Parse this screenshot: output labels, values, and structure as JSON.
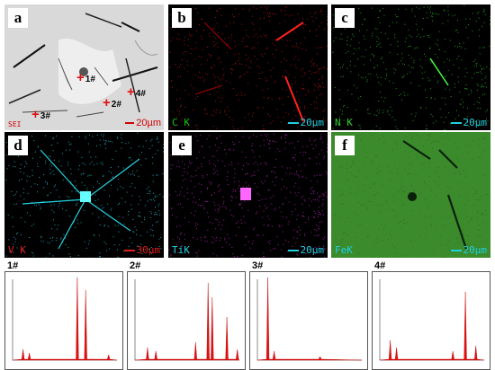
{
  "panels": [
    {
      "letter": "a",
      "channel": "SEI",
      "scale": "20µm",
      "type": "sem"
    },
    {
      "letter": "b",
      "channel": "C K",
      "scale": "20µm",
      "color": "#d01010"
    },
    {
      "letter": "c",
      "channel": "N K",
      "scale": "20µm",
      "color": "#2ecc2e"
    },
    {
      "letter": "d",
      "channel": "V K",
      "scale": "30µm",
      "color": "#22d4e0"
    },
    {
      "letter": "e",
      "channel": "TiK",
      "scale": "20µm",
      "color": "#cc33cc"
    },
    {
      "letter": "f",
      "channel": "FeK",
      "scale": "20µm",
      "color": "#3b8a2c"
    }
  ],
  "markers": [
    "1#",
    "2#",
    "3#",
    "4#"
  ],
  "spectra": [
    {
      "title": "1#"
    },
    {
      "title": "2#"
    },
    {
      "title": "3#"
    },
    {
      "title": "4#"
    }
  ],
  "colors": {
    "channel_label_b": "#10c010",
    "scale_text": "#20d0e0",
    "marker_cross": "#e01010"
  }
}
